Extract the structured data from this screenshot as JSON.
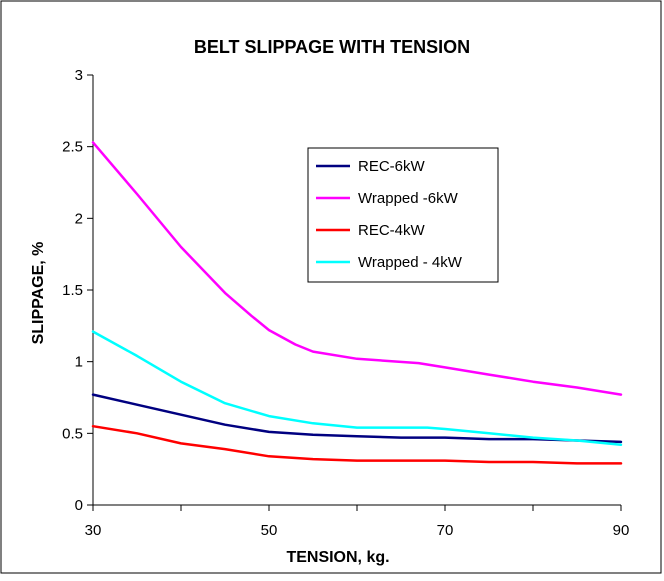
{
  "chart_data": {
    "type": "line",
    "title": "BELT SLIPPAGE WITH TENSION",
    "xlabel": "TENSION, kg.",
    "ylabel": "SLIPPAGE, %",
    "xlim": [
      30,
      90
    ],
    "ylim": [
      0,
      3
    ],
    "xticks": [
      "30",
      "50",
      "70",
      "90"
    ],
    "yticks": [
      "0",
      "0.5",
      "1",
      "1.5",
      "2",
      "2.5",
      "3"
    ],
    "grid": false,
    "legend_position": "top-right",
    "series": [
      {
        "name": "REC-6kW",
        "color": "#000080",
        "x": [
          30,
          35,
          40,
          45,
          50,
          55,
          60,
          65,
          70,
          75,
          80,
          85,
          90
        ],
        "y": [
          0.77,
          0.7,
          0.63,
          0.56,
          0.51,
          0.49,
          0.48,
          0.47,
          0.47,
          0.46,
          0.46,
          0.45,
          0.44
        ]
      },
      {
        "name": "Wrapped -6kW",
        "color": "#FF00FF",
        "x": [
          30,
          35,
          40,
          45,
          48,
          50,
          53,
          55,
          60,
          67,
          70,
          75,
          80,
          85,
          90
        ],
        "y": [
          2.53,
          2.17,
          1.8,
          1.48,
          1.32,
          1.22,
          1.12,
          1.07,
          1.02,
          0.99,
          0.96,
          0.91,
          0.86,
          0.82,
          0.77
        ]
      },
      {
        "name": "REC-4kW",
        "color": "#FF0000",
        "x": [
          30,
          35,
          40,
          45,
          50,
          55,
          60,
          65,
          70,
          75,
          80,
          85,
          90
        ],
        "y": [
          0.55,
          0.5,
          0.43,
          0.39,
          0.34,
          0.32,
          0.31,
          0.31,
          0.31,
          0.3,
          0.3,
          0.29,
          0.29
        ]
      },
      {
        "name": "Wrapped - 4kW",
        "color": "#00FFFF",
        "x": [
          30,
          35,
          40,
          45,
          50,
          55,
          60,
          65,
          68,
          70,
          75,
          80,
          85,
          90
        ],
        "y": [
          1.21,
          1.04,
          0.86,
          0.71,
          0.62,
          0.57,
          0.54,
          0.54,
          0.54,
          0.53,
          0.5,
          0.47,
          0.45,
          0.42
        ]
      }
    ]
  }
}
